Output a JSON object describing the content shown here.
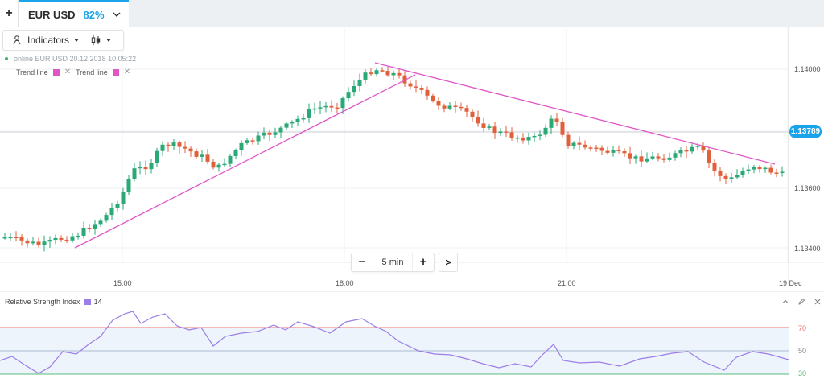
{
  "tabs": {
    "add_label": "+",
    "asset": {
      "name": "EUR USD",
      "payout": "82%"
    }
  },
  "toolbar": {
    "indicators_label": "Indicators",
    "icons": {
      "indicators": "person-icon",
      "chart_type": "candlestick-icon"
    }
  },
  "info": {
    "online_text": "online EUR USD  20.12.2018 10:05:22"
  },
  "trend_lines": {
    "items": [
      {
        "label": "Trend line",
        "color": "#e055c8"
      },
      {
        "label": "Trend line",
        "color": "#e055c8"
      }
    ]
  },
  "price_axis": {
    "current_price": "1.13789",
    "labels": [
      "1.14000",
      "1.13600",
      "1.13400"
    ]
  },
  "time_axis": {
    "labels": [
      "15:00",
      "18:00",
      "21:00",
      "19 Dec"
    ]
  },
  "zoom": {
    "label": "5 min",
    "minus": "−",
    "plus": "+",
    "next": ">"
  },
  "rsi": {
    "title": "Relative Strength Index",
    "period": "14",
    "levels": [
      "70",
      "50",
      "30"
    ],
    "line_color": "#9b7ee8"
  },
  "colors": {
    "accent": "#1aa3e8",
    "bull": "#2aa876",
    "bear": "#e0603c",
    "trend": "#e055c8",
    "rsi_high": "#e8706d",
    "rsi_low": "#5bbd7c"
  }
}
